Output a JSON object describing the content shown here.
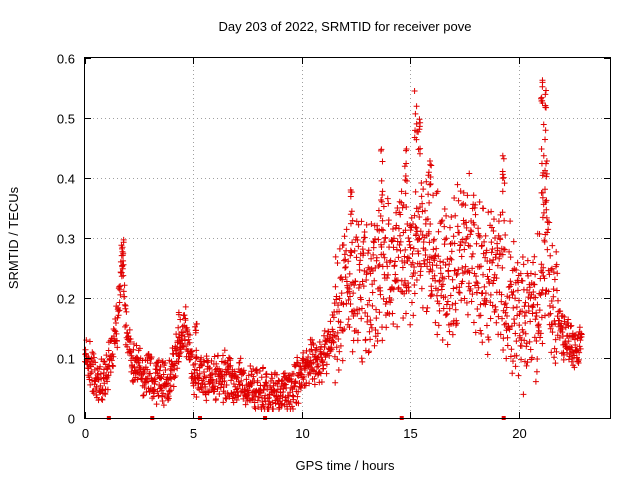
{
  "chart_data": {
    "type": "scatter",
    "title": "Day 203 of 2022, SRMTID for receiver pove",
    "xlabel": "GPS time / hours",
    "ylabel": "SRMTID / TECUs",
    "xlim": [
      0,
      24.2
    ],
    "ylim": [
      0,
      0.6
    ],
    "xticks": [
      0,
      5,
      10,
      15,
      20
    ],
    "yticks": [
      0,
      0.1,
      0.2,
      0.3,
      0.4,
      0.5,
      0.6
    ],
    "ytick_labels": [
      "0",
      "0.1",
      "0.2",
      "0.3",
      "0.4",
      "0.5",
      "0.6"
    ],
    "grid": true,
    "marker": "+",
    "color": "#e00000",
    "series": [
      {
        "name": "SRMTID",
        "profile": [
          [
            0.0,
            0.11
          ],
          [
            0.4,
            0.07
          ],
          [
            0.8,
            0.06
          ],
          [
            1.2,
            0.1
          ],
          [
            1.5,
            0.16
          ],
          [
            1.7,
            0.28
          ],
          [
            1.9,
            0.15
          ],
          [
            2.2,
            0.09
          ],
          [
            2.6,
            0.08
          ],
          [
            3.0,
            0.07
          ],
          [
            3.4,
            0.06
          ],
          [
            3.8,
            0.05
          ],
          [
            4.2,
            0.1
          ],
          [
            4.6,
            0.15
          ],
          [
            5.0,
            0.08
          ],
          [
            5.5,
            0.07
          ],
          [
            6.0,
            0.06
          ],
          [
            6.5,
            0.07
          ],
          [
            7.0,
            0.06
          ],
          [
            7.5,
            0.06
          ],
          [
            8.0,
            0.05
          ],
          [
            8.5,
            0.04
          ],
          [
            9.0,
            0.04
          ],
          [
            9.5,
            0.05
          ],
          [
            10.0,
            0.07
          ],
          [
            10.4,
            0.1
          ],
          [
            10.8,
            0.09
          ],
          [
            11.2,
            0.12
          ],
          [
            11.6,
            0.16
          ],
          [
            12.0,
            0.2
          ],
          [
            12.5,
            0.22
          ],
          [
            13.0,
            0.2
          ],
          [
            13.5,
            0.24
          ],
          [
            14.0,
            0.26
          ],
          [
            14.5,
            0.28
          ],
          [
            15.0,
            0.25
          ],
          [
            15.5,
            0.3
          ],
          [
            16.0,
            0.28
          ],
          [
            16.5,
            0.22
          ],
          [
            17.0,
            0.25
          ],
          [
            17.5,
            0.3
          ],
          [
            18.0,
            0.27
          ],
          [
            18.5,
            0.22
          ],
          [
            19.0,
            0.27
          ],
          [
            19.5,
            0.2
          ],
          [
            20.0,
            0.18
          ],
          [
            20.5,
            0.15
          ],
          [
            21.0,
            0.2
          ],
          [
            21.3,
            0.28
          ],
          [
            21.6,
            0.2
          ],
          [
            22.0,
            0.14
          ],
          [
            22.5,
            0.12
          ],
          [
            22.9,
            0.12
          ]
        ],
        "spikes": [
          [
            1.75,
            0.31
          ],
          [
            4.35,
            0.19
          ],
          [
            5.1,
            0.16
          ],
          [
            12.3,
            0.4
          ],
          [
            13.7,
            0.45
          ],
          [
            14.8,
            0.45
          ],
          [
            15.25,
            0.55
          ],
          [
            15.4,
            0.5
          ],
          [
            15.9,
            0.44
          ],
          [
            19.3,
            0.44
          ],
          [
            21.05,
            0.59
          ],
          [
            21.2,
            0.55
          ],
          [
            21.25,
            0.43
          ],
          [
            21.1,
            0.45
          ]
        ],
        "gap_markers": [
          1.1,
          3.1,
          5.3,
          8.3,
          14.6,
          19.3
        ]
      }
    ]
  }
}
